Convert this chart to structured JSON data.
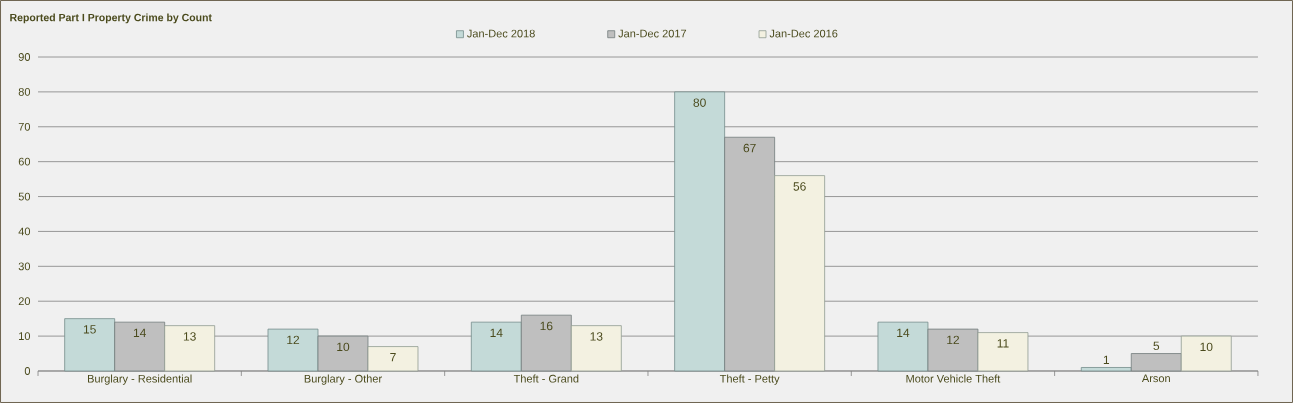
{
  "chart_data": {
    "type": "bar",
    "title": "Reported Part I Property Crime by  Count",
    "categories": [
      "Burglary - Residential",
      "Burglary - Other",
      "Theft - Grand",
      "Theft - Petty",
      "Motor Vehicle Theft",
      "Arson"
    ],
    "series": [
      {
        "name": "Jan-Dec 2018",
        "color": "#c4dad8",
        "values": [
          15,
          12,
          14,
          80,
          14,
          1
        ]
      },
      {
        "name": "Jan-Dec 2017",
        "color": "#bfbfbf",
        "values": [
          14,
          10,
          16,
          67,
          12,
          5
        ]
      },
      {
        "name": "Jan-Dec 2016",
        "color": "#f3f1e1",
        "values": [
          13,
          7,
          13,
          56,
          11,
          10
        ]
      }
    ],
    "ylim": [
      0,
      90
    ],
    "yticks": [
      0,
      10,
      20,
      30,
      40,
      50,
      60,
      70,
      80,
      90
    ],
    "grid": "y",
    "legend": "top",
    "data_labels": true
  }
}
